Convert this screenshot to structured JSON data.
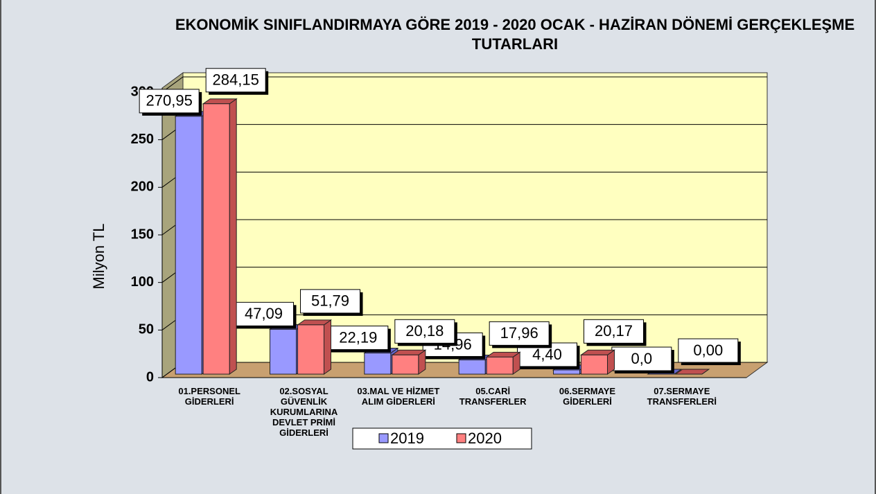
{
  "chart_data": {
    "type": "bar3d",
    "title": "EKONOMİK SINIFLANDIRMAYA GÖRE 2019 - 2020 OCAK - HAZİRAN DÖNEMİ GERÇEKLEŞME TUTARLARI",
    "y_label": "Milyon TL",
    "categories": [
      "01.PERSONEL GİDERLERİ",
      "02.SOSYAL GÜVENLİK KURUMLARINA DEVLET PRİMİ GİDERLERİ",
      "03.MAL VE HİZMET ALIM GİDERLERİ",
      "05.CARİ TRANSFERLER",
      "06.SERMAYE GİDERLERİ",
      "07.SERMAYE TRANSFERLERİ"
    ],
    "series": [
      {
        "name": "2019",
        "color": "#9999ff",
        "side": "#6666cc",
        "values": [
          270.95,
          47.09,
          22.19,
          14.96,
          4.4,
          0.0
        ],
        "value_labels": [
          "270,95",
          "47,09",
          "22,19",
          "14,96",
          "4,40",
          "0,0"
        ]
      },
      {
        "name": "2020",
        "color": "#ff8080",
        "side": "#c05050",
        "values": [
          284.15,
          51.79,
          20.18,
          17.96,
          20.17,
          0.0
        ],
        "value_labels": [
          "284,15",
          "51,79",
          "20,18",
          "17,96",
          "20,17",
          "0,00"
        ]
      }
    ],
    "ylim": [
      0,
      300
    ],
    "yticks": [
      0,
      50,
      100,
      150,
      200,
      250,
      300
    ],
    "grid": true,
    "legend": "bottom"
  }
}
